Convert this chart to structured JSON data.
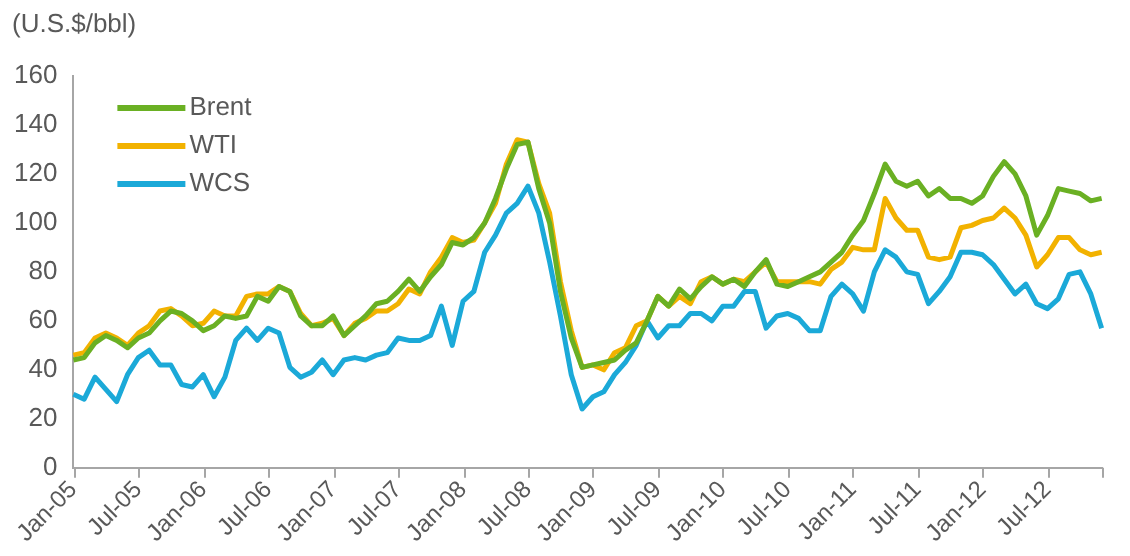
{
  "chart_data": {
    "type": "line",
    "ylabel": "(U.S.$/bbl)",
    "categories": [
      "Jan-05",
      null,
      null,
      null,
      null,
      null,
      "Jul-05",
      null,
      null,
      null,
      null,
      null,
      "Jan-06",
      null,
      null,
      null,
      null,
      null,
      "Jul-06",
      null,
      null,
      null,
      null,
      null,
      "Jan-07",
      null,
      null,
      null,
      null,
      null,
      "Jul-07",
      null,
      null,
      null,
      null,
      null,
      "Jan-08",
      null,
      null,
      null,
      null,
      null,
      "Jul-08",
      null,
      null,
      null,
      null,
      null,
      "Jan-09",
      null,
      null,
      null,
      null,
      null,
      "Jul-09",
      null,
      null,
      null,
      null,
      null,
      "Jan-10",
      null,
      null,
      null,
      null,
      null,
      "Jul-10",
      null,
      null,
      null,
      null,
      null,
      "Jan-11",
      null,
      null,
      null,
      null,
      null,
      "Jul-11",
      null,
      null,
      null,
      null,
      null,
      "Jan-12",
      null,
      null,
      null,
      null,
      null,
      "Jul-12",
      null,
      null,
      null,
      null,
      null
    ],
    "series": [
      {
        "name": "Brent",
        "color": "#6ab023",
        "values": [
          44,
          45,
          51,
          54,
          52,
          49,
          53,
          55,
          60,
          64,
          63,
          60,
          56,
          58,
          62,
          61,
          62,
          70,
          68,
          74,
          72,
          62,
          58,
          58,
          62,
          54,
          58,
          62,
          67,
          68,
          72,
          77,
          72,
          78,
          83,
          92,
          91,
          94,
          100,
          110,
          122,
          132,
          133,
          114,
          100,
          72,
          53,
          41,
          42,
          43,
          44,
          48,
          51,
          60,
          70,
          66,
          73,
          69,
          74,
          78,
          75,
          77,
          74,
          80,
          85,
          75,
          74,
          76,
          78,
          80,
          84,
          88,
          95,
          101,
          112,
          124,
          117,
          115,
          117,
          111,
          114,
          110,
          110,
          108,
          111,
          119,
          125,
          120,
          111,
          95,
          103,
          114,
          113,
          112,
          109,
          110
        ]
      },
      {
        "name": "WTI",
        "color": "#f2b200",
        "values": [
          46,
          47,
          53,
          55,
          53,
          50,
          55,
          58,
          64,
          65,
          62,
          58,
          59,
          64,
          62,
          62,
          70,
          71,
          71,
          74,
          72,
          63,
          58,
          59,
          61,
          54,
          59,
          61,
          64,
          64,
          67,
          73,
          71,
          80,
          86,
          94,
          92,
          93,
          100,
          108,
          124,
          134,
          133,
          116,
          104,
          76,
          56,
          41,
          42,
          40,
          47,
          49,
          58,
          60,
          70,
          66,
          70,
          67,
          76,
          78,
          75,
          77,
          76,
          80,
          84,
          76,
          76,
          76,
          76,
          75,
          81,
          84,
          90,
          89,
          89,
          110,
          102,
          97,
          97,
          86,
          85,
          86,
          98,
          99,
          101,
          102,
          106,
          102,
          95,
          82,
          87,
          94,
          94,
          89,
          87,
          88
        ]
      },
      {
        "name": "WCS",
        "color": "#1ba9d8",
        "values": [
          30,
          28,
          37,
          32,
          27,
          38,
          45,
          48,
          42,
          42,
          34,
          33,
          38,
          29,
          37,
          52,
          57,
          52,
          57,
          55,
          41,
          37,
          39,
          44,
          38,
          44,
          45,
          44,
          46,
          47,
          53,
          52,
          52,
          54,
          66,
          50,
          68,
          72,
          88,
          95,
          104,
          108,
          115,
          104,
          84,
          62,
          38,
          24,
          29,
          31,
          38,
          43,
          50,
          60,
          53,
          58,
          58,
          63,
          63,
          60,
          66,
          66,
          72,
          72,
          57,
          62,
          63,
          61,
          56,
          56,
          70,
          75,
          71,
          64,
          80,
          89,
          86,
          80,
          79,
          67,
          72,
          78,
          88,
          88,
          87,
          83,
          77,
          71,
          75,
          67,
          65,
          69,
          79,
          80,
          71,
          57
        ]
      }
    ],
    "ylim": [
      0,
      160
    ],
    "yticks": [
      0,
      20,
      40,
      60,
      80,
      100,
      120,
      140,
      160
    ],
    "grid": false,
    "legend": "top left",
    "marker": "none",
    "line_style": "solid"
  }
}
